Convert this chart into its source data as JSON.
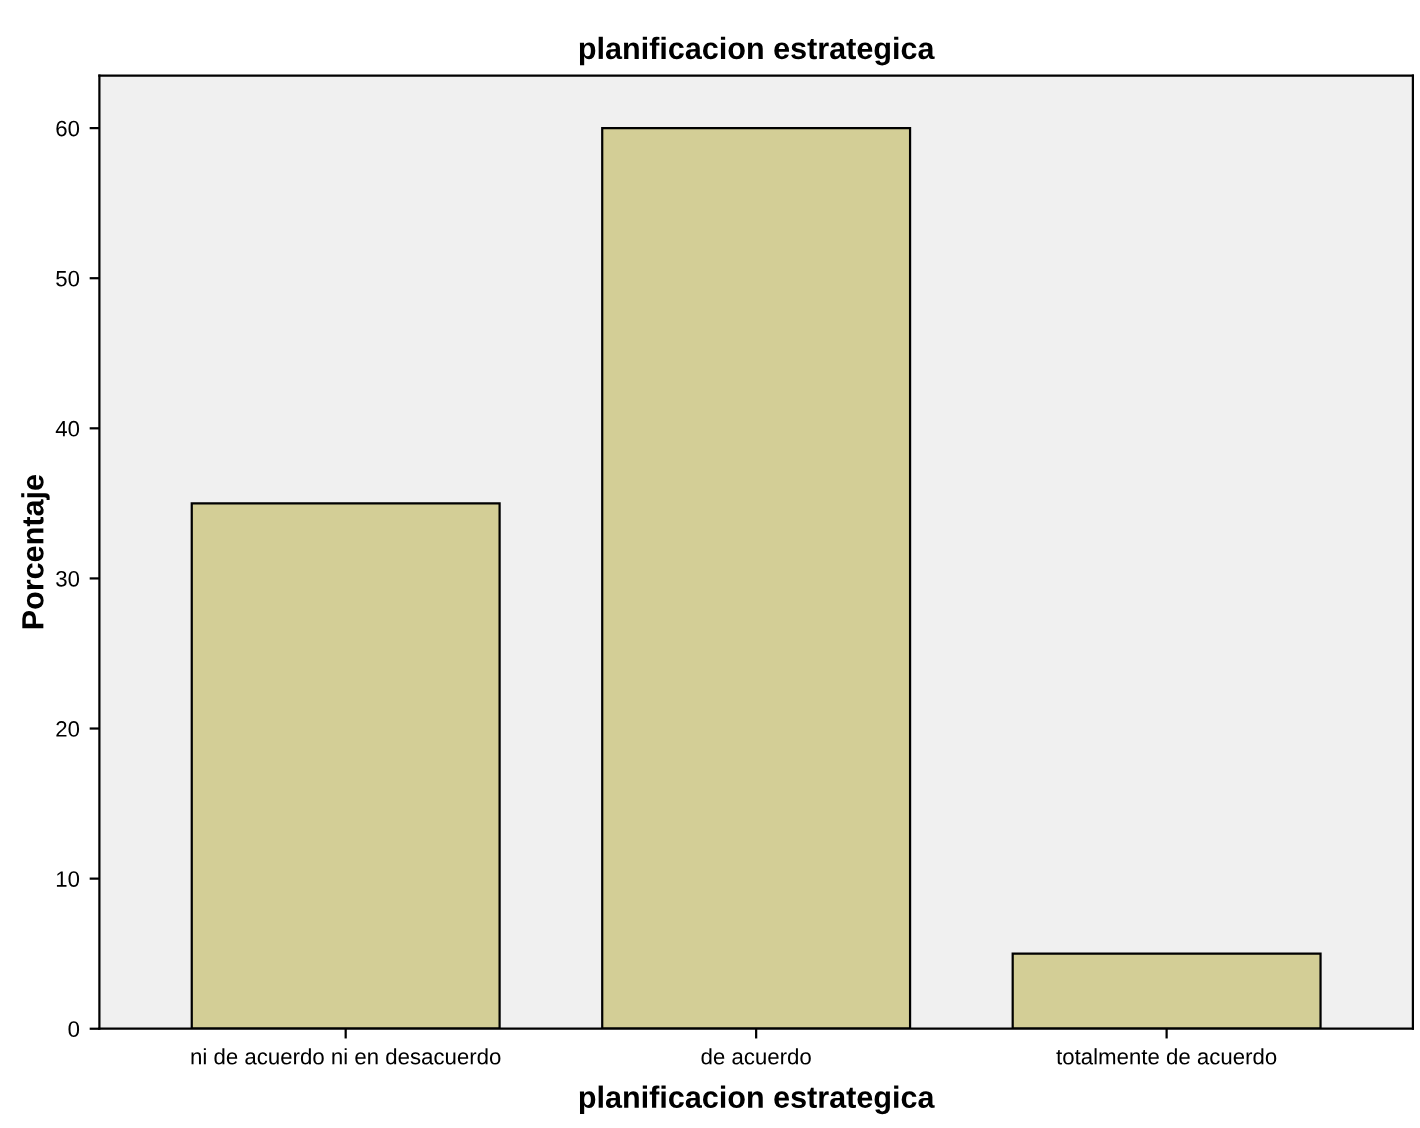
{
  "chart_data": {
    "type": "bar",
    "title": "planificacion estrategica",
    "xlabel": "planificacion estrategica",
    "ylabel": "Porcentaje",
    "categories": [
      "ni de acuerdo ni en desacuerdo",
      "de acuerdo",
      "totalmente de acuerdo"
    ],
    "values": [
      35,
      60,
      5
    ],
    "color": "#d3ce96",
    "ylim": [
      0,
      63.5
    ],
    "yticks": [
      0,
      10,
      20,
      30,
      40,
      50,
      60
    ],
    "grid": false
  }
}
